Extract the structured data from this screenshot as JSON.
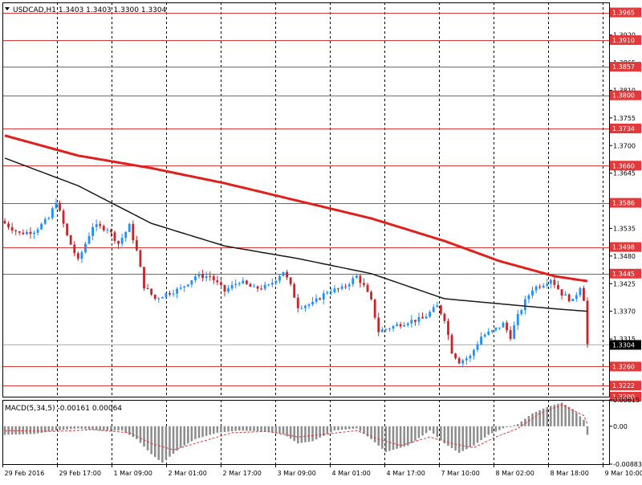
{
  "header": {
    "symbol_info": "USDCAD,H1  1.3403 1.3403 1.3300 1.3304",
    "macd_info": "MACD(5,34,5) -0.00161 0.00064"
  },
  "colors": {
    "bull": "#1E90FF",
    "bear": "#C8242A",
    "ma_fast": "#E0201C",
    "ma_slow": "#1A1A1A",
    "level": "#E23A3A",
    "macd_hist": "#8C8C8C",
    "macd_signal": "#E03A3A",
    "grid": "#000000"
  },
  "chart_data": [
    {
      "type": "candlestick",
      "title": "USDCAD,H1",
      "ylim": [
        1.32,
        1.3985
      ],
      "y_ticks": [
        {
          "value": 1.392,
          "label": "1.3920"
        },
        {
          "value": 1.3865,
          "label": "1.3865"
        },
        {
          "value": 1.381,
          "label": "1.3810"
        },
        {
          "value": 1.3755,
          "label": "1.3755"
        },
        {
          "value": 1.37,
          "label": "1.3700"
        },
        {
          "value": 1.3645,
          "label": "1.3645"
        },
        {
          "value": 1.359,
          "label": "1.3590"
        },
        {
          "value": 1.3535,
          "label": "1.3535"
        },
        {
          "value": 1.348,
          "label": "1.3480"
        },
        {
          "value": 1.3425,
          "label": "1.3425"
        },
        {
          "value": 1.337,
          "label": "1.3370"
        },
        {
          "value": 1.3315,
          "label": "1.3315"
        }
      ],
      "levels": [
        {
          "value": 1.3965,
          "label": "1.3965"
        },
        {
          "value": 1.391,
          "label": "1.3910"
        },
        {
          "value": 1.3857,
          "label": "1.3857"
        },
        {
          "value": 1.38,
          "label": "1.3800"
        },
        {
          "value": 1.3734,
          "label": "1.3734"
        },
        {
          "value": 1.366,
          "label": "1.3660"
        },
        {
          "value": 1.3586,
          "label": "1.3586"
        },
        {
          "value": 1.3498,
          "label": "1.3498"
        },
        {
          "value": 1.3445,
          "label": "1.3445"
        },
        {
          "value": 1.326,
          "label": "1.3260"
        },
        {
          "value": 1.3222,
          "label": "1.3222"
        },
        {
          "value": 1.32,
          "label": "1.3200"
        }
      ],
      "current_price": {
        "value": 1.3304,
        "label": "1.3304"
      },
      "x_labels": [
        "29 Feb 2016",
        "29 Feb 17:00",
        "1 Mar 09:00",
        "2 Mar 01:00",
        "2 Mar 17:00",
        "3 Mar 09:00",
        "4 Mar 01:00",
        "4 Mar 17:00",
        "7 Mar 10:00",
        "8 Mar 02:00",
        "8 Mar 18:00",
        "9 Mar 10:00"
      ],
      "price_path": [
        [
          0,
          1.3545
        ],
        [
          4,
          1.3525
        ],
        [
          8,
          1.353
        ],
        [
          12,
          1.3555
        ],
        [
          14,
          1.359
        ],
        [
          17,
          1.352
        ],
        [
          20,
          1.347
        ],
        [
          24,
          1.354
        ],
        [
          28,
          1.3535
        ],
        [
          31,
          1.3505
        ],
        [
          34,
          1.354
        ],
        [
          36,
          1.349
        ],
        [
          38,
          1.342
        ],
        [
          41,
          1.3395
        ],
        [
          44,
          1.3405
        ],
        [
          48,
          1.3415
        ],
        [
          52,
          1.344
        ],
        [
          56,
          1.344
        ],
        [
          60,
          1.341
        ],
        [
          64,
          1.343
        ],
        [
          68,
          1.3415
        ],
        [
          72,
          1.342
        ],
        [
          76,
          1.345
        ],
        [
          78,
          1.342
        ],
        [
          80,
          1.338
        ],
        [
          84,
          1.3385
        ],
        [
          88,
          1.341
        ],
        [
          92,
          1.3415
        ],
        [
          96,
          1.344
        ],
        [
          98,
          1.342
        ],
        [
          100,
          1.339
        ],
        [
          102,
          1.333
        ],
        [
          106,
          1.334
        ],
        [
          110,
          1.335
        ],
        [
          114,
          1.3355
        ],
        [
          118,
          1.338
        ],
        [
          120,
          1.3355
        ],
        [
          122,
          1.329
        ],
        [
          124,
          1.327
        ],
        [
          127,
          1.328
        ],
        [
          130,
          1.332
        ],
        [
          133,
          1.333
        ],
        [
          136,
          1.3345
        ],
        [
          138,
          1.332
        ],
        [
          140,
          1.336
        ],
        [
          142,
          1.339
        ],
        [
          144,
          1.3415
        ],
        [
          147,
          1.3425
        ],
        [
          149,
          1.3435
        ],
        [
          152,
          1.3405
        ],
        [
          155,
          1.339
        ],
        [
          157,
          1.342
        ],
        [
          158,
          1.3395
        ],
        [
          159,
          1.3304
        ]
      ],
      "series": [
        {
          "kind": "moving-average",
          "color_key": "ma_fast",
          "points": [
            [
              0,
              1.372
            ],
            [
              20,
              1.368
            ],
            [
              40,
              1.3655
            ],
            [
              60,
              1.3625
            ],
            [
              80,
              1.359
            ],
            [
              100,
              1.3555
            ],
            [
              120,
              1.351
            ],
            [
              135,
              1.347
            ],
            [
              150,
              1.344
            ],
            [
              159,
              1.343
            ]
          ]
        },
        {
          "kind": "moving-average",
          "color_key": "ma_slow",
          "points": [
            [
              0,
              1.3675
            ],
            [
              20,
              1.362
            ],
            [
              40,
              1.3545
            ],
            [
              60,
              1.35
            ],
            [
              80,
              1.3475
            ],
            [
              100,
              1.3445
            ],
            [
              110,
              1.342
            ],
            [
              120,
              1.3395
            ],
            [
              135,
              1.3385
            ],
            [
              150,
              1.3375
            ],
            [
              159,
              1.337
            ]
          ]
        }
      ]
    },
    {
      "type": "bar",
      "title": "MACD(5,34,5)",
      "ylim": [
        -0.00883,
        0.00615
      ],
      "y_ticks": [
        {
          "value": 0.00615,
          "label": "0.00615"
        },
        {
          "value": 0.0,
          "label": "0.00"
        },
        {
          "value": -0.00883,
          "label": "-0.00883"
        }
      ],
      "histogram_path": [
        [
          0,
          -0.002
        ],
        [
          8,
          -0.0018
        ],
        [
          14,
          -0.001
        ],
        [
          20,
          -0.0005
        ],
        [
          26,
          -0.001
        ],
        [
          32,
          -0.001
        ],
        [
          36,
          -0.003
        ],
        [
          40,
          -0.0065
        ],
        [
          43,
          -0.0085
        ],
        [
          48,
          -0.005
        ],
        [
          52,
          -0.003
        ],
        [
          58,
          -0.0015
        ],
        [
          64,
          -0.001
        ],
        [
          70,
          -0.0012
        ],
        [
          76,
          -0.0018
        ],
        [
          80,
          -0.004
        ],
        [
          84,
          -0.0035
        ],
        [
          90,
          -0.001
        ],
        [
          96,
          -0.0005
        ],
        [
          100,
          -0.003
        ],
        [
          104,
          -0.006
        ],
        [
          110,
          -0.0045
        ],
        [
          116,
          -0.001
        ],
        [
          120,
          -0.004
        ],
        [
          124,
          -0.0062
        ],
        [
          128,
          -0.0045
        ],
        [
          132,
          -0.002
        ],
        [
          136,
          -0.0005
        ],
        [
          140,
          0.0005
        ],
        [
          144,
          0.003
        ],
        [
          148,
          0.0045
        ],
        [
          152,
          0.0055
        ],
        [
          155,
          0.004
        ],
        [
          158,
          0.0015
        ],
        [
          159,
          -0.002
        ]
      ],
      "signal_path": [
        [
          0,
          -0.001
        ],
        [
          14,
          -0.0012
        ],
        [
          24,
          -0.0008
        ],
        [
          34,
          -0.0015
        ],
        [
          40,
          -0.004
        ],
        [
          46,
          -0.0055
        ],
        [
          52,
          -0.004
        ],
        [
          62,
          -0.0015
        ],
        [
          72,
          -0.0012
        ],
        [
          80,
          -0.0025
        ],
        [
          88,
          -0.0018
        ],
        [
          96,
          -0.001
        ],
        [
          102,
          -0.003
        ],
        [
          108,
          -0.0045
        ],
        [
          116,
          -0.0025
        ],
        [
          122,
          -0.004
        ],
        [
          128,
          -0.005
        ],
        [
          134,
          -0.0025
        ],
        [
          140,
          -0.0005
        ],
        [
          146,
          0.003
        ],
        [
          152,
          0.005
        ],
        [
          158,
          0.0025
        ],
        [
          159,
          0.0005
        ]
      ]
    }
  ]
}
